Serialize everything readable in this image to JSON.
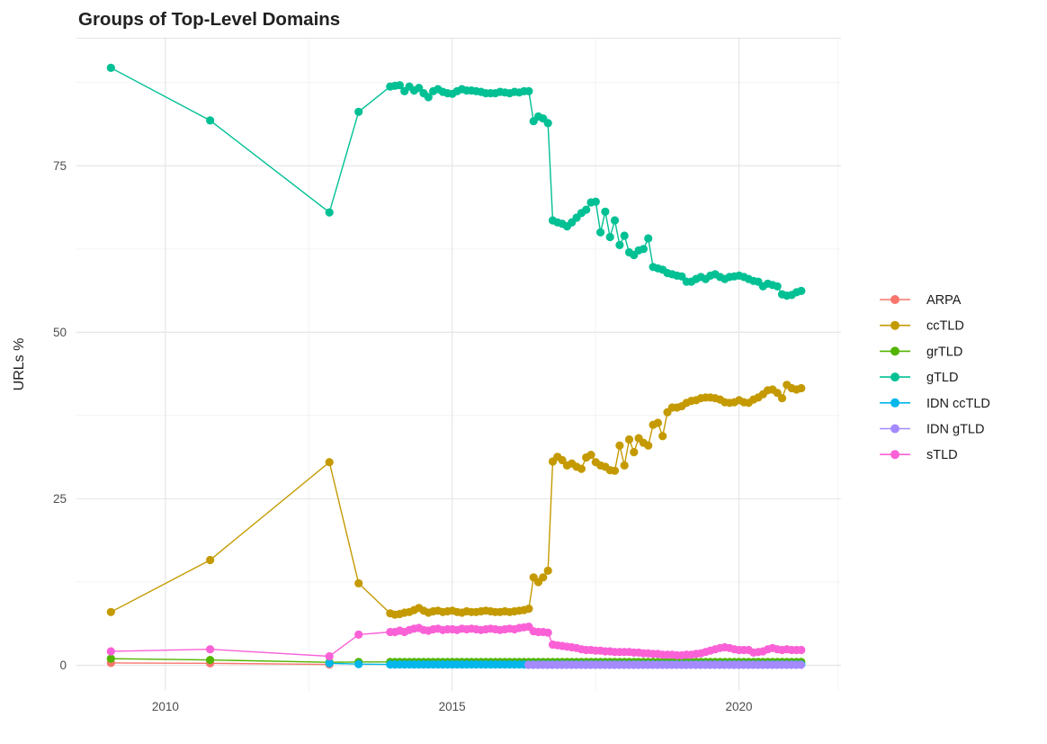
{
  "chart_data": {
    "type": "line",
    "title": "Groups of Top-Level Domains",
    "xlabel": "",
    "ylabel": "URLs %",
    "xlim": [
      2008.45,
      2021.78
    ],
    "ylim": [
      -3.85,
      94.15
    ],
    "grid": true,
    "legend_position": "right",
    "x_major_ticks": [
      {
        "value": 2010,
        "label": "2010"
      },
      {
        "value": 2015,
        "label": "2015"
      },
      {
        "value": 2020,
        "label": "2020"
      }
    ],
    "x_minor_ticks": [
      2012.5,
      2017.5,
      2021.73
    ],
    "y_major_ticks": [
      {
        "value": 0,
        "label": "0"
      },
      {
        "value": 25,
        "label": "25"
      },
      {
        "value": 50,
        "label": "50"
      },
      {
        "value": 75,
        "label": "75"
      }
    ],
    "y_minor_ticks": [
      12.5,
      37.5,
      62.5,
      87.5
    ],
    "series": [
      {
        "name": "ARPA",
        "color": "#F8766D",
        "points": [
          [
            2009.05,
            0.35
          ],
          [
            2010.78,
            0.3
          ],
          [
            2012.86,
            0.12
          ]
        ]
      },
      {
        "name": "ccTLD",
        "color": "#C49A00",
        "points": [
          [
            2009.05,
            8.0
          ],
          [
            2010.78,
            15.8
          ],
          [
            2012.86,
            30.5
          ],
          [
            2013.37,
            12.3
          ]
        ],
        "monthly": {
          "start": 2013.92,
          "values": [
            7.8,
            7.6,
            7.7,
            7.9,
            8.0,
            8.3,
            8.6,
            8.2,
            7.9,
            8.1,
            8.2,
            8.0,
            8.1,
            8.2,
            8.0,
            7.9,
            8.1,
            8.0,
            8.0,
            8.1,
            8.2,
            8.1,
            8.0,
            8.0,
            8.1,
            8.0,
            8.1,
            8.2,
            8.3,
            8.5,
            13.2,
            12.5,
            13.2,
            14.2,
            30.6,
            31.3,
            30.8,
            30.0,
            30.3,
            29.8,
            29.5,
            31.2,
            31.6,
            30.5,
            30.0,
            29.8,
            29.3,
            29.2,
            33.0,
            30.0,
            33.9,
            32.0,
            34.1,
            33.4,
            33.0,
            36.1,
            36.4,
            34.4,
            38.0,
            38.7,
            38.7,
            38.9,
            39.4,
            39.7,
            39.8,
            40.1,
            40.2,
            40.2,
            40.1,
            39.9,
            39.5,
            39.4,
            39.5,
            39.8,
            39.5,
            39.4,
            39.9,
            40.2,
            40.7,
            41.3,
            41.4,
            40.9,
            40.1,
            42.1,
            41.6,
            41.4,
            41.6
          ]
        }
      },
      {
        "name": "grTLD",
        "color": "#53B400",
        "points": [
          [
            2009.05,
            1.0
          ],
          [
            2010.78,
            0.8
          ],
          [
            2012.86,
            0.45
          ],
          [
            2013.37,
            0.5
          ]
        ],
        "monthly": {
          "start": 2013.92,
          "count": 87,
          "value": 0.5
        }
      },
      {
        "name": "gTLD",
        "color": "#00C094",
        "points": [
          [
            2009.05,
            89.7
          ],
          [
            2010.78,
            81.8
          ],
          [
            2012.86,
            68.0
          ],
          [
            2013.37,
            83.1
          ]
        ],
        "monthly": {
          "start": 2013.92,
          "values": [
            86.9,
            87.0,
            87.1,
            86.2,
            86.9,
            86.3,
            86.7,
            85.9,
            85.3,
            86.2,
            86.5,
            86.1,
            85.9,
            85.8,
            86.2,
            86.5,
            86.3,
            86.3,
            86.2,
            86.1,
            85.9,
            85.9,
            85.9,
            86.1,
            86.0,
            85.9,
            86.1,
            86.0,
            86.2,
            86.2,
            81.7,
            82.4,
            82.1,
            81.4,
            66.8,
            66.5,
            66.3,
            65.9,
            66.5,
            67.2,
            67.9,
            68.4,
            69.5,
            69.6,
            65.0,
            68.1,
            64.3,
            66.8,
            63.1,
            64.5,
            62.0,
            61.6,
            62.3,
            62.5,
            64.1,
            59.8,
            59.6,
            59.4,
            58.9,
            58.7,
            58.5,
            58.4,
            57.6,
            57.6,
            58.0,
            58.3,
            58.0,
            58.5,
            58.7,
            58.3,
            58.0,
            58.3,
            58.4,
            58.5,
            58.3,
            58.0,
            57.7,
            57.6,
            56.9,
            57.3,
            57.1,
            56.9,
            55.7,
            55.5,
            55.6,
            56.0,
            56.2
          ]
        }
      },
      {
        "name": "IDN ccTLD",
        "color": "#00B6EB",
        "points": [
          [
            2012.86,
            0.3
          ],
          [
            2013.37,
            0.18
          ]
        ],
        "monthly": {
          "start": 2013.92,
          "count": 87,
          "value": 0.12
        }
      },
      {
        "name": "IDN gTLD",
        "color": "#A58AFF",
        "points": [],
        "monthly": {
          "start": 2016.33,
          "count": 58,
          "value": 0.07
        }
      },
      {
        "name": "sTLD",
        "color": "#FB61D7",
        "points": [
          [
            2009.05,
            2.1
          ],
          [
            2010.78,
            2.4
          ],
          [
            2012.86,
            1.35
          ],
          [
            2013.37,
            4.6
          ]
        ],
        "monthly": {
          "start": 2013.92,
          "values": [
            5.0,
            5.0,
            5.2,
            5.0,
            5.3,
            5.5,
            5.6,
            5.3,
            5.2,
            5.4,
            5.5,
            5.3,
            5.4,
            5.4,
            5.3,
            5.5,
            5.4,
            5.5,
            5.4,
            5.3,
            5.4,
            5.5,
            5.4,
            5.3,
            5.4,
            5.5,
            5.4,
            5.6,
            5.7,
            5.8,
            5.1,
            5.0,
            5.0,
            4.9,
            3.1,
            3.0,
            2.9,
            2.8,
            2.7,
            2.6,
            2.4,
            2.3,
            2.3,
            2.2,
            2.2,
            2.1,
            2.1,
            2.0,
            2.0,
            2.0,
            2.0,
            1.9,
            1.9,
            1.8,
            1.8,
            1.7,
            1.7,
            1.6,
            1.6,
            1.6,
            1.5,
            1.5,
            1.6,
            1.6,
            1.7,
            1.8,
            2.0,
            2.2,
            2.4,
            2.6,
            2.7,
            2.6,
            2.4,
            2.3,
            2.3,
            2.3,
            1.9,
            2.0,
            2.1,
            2.4,
            2.6,
            2.4,
            2.3,
            2.4,
            2.3,
            2.3,
            2.3
          ]
        }
      }
    ]
  }
}
